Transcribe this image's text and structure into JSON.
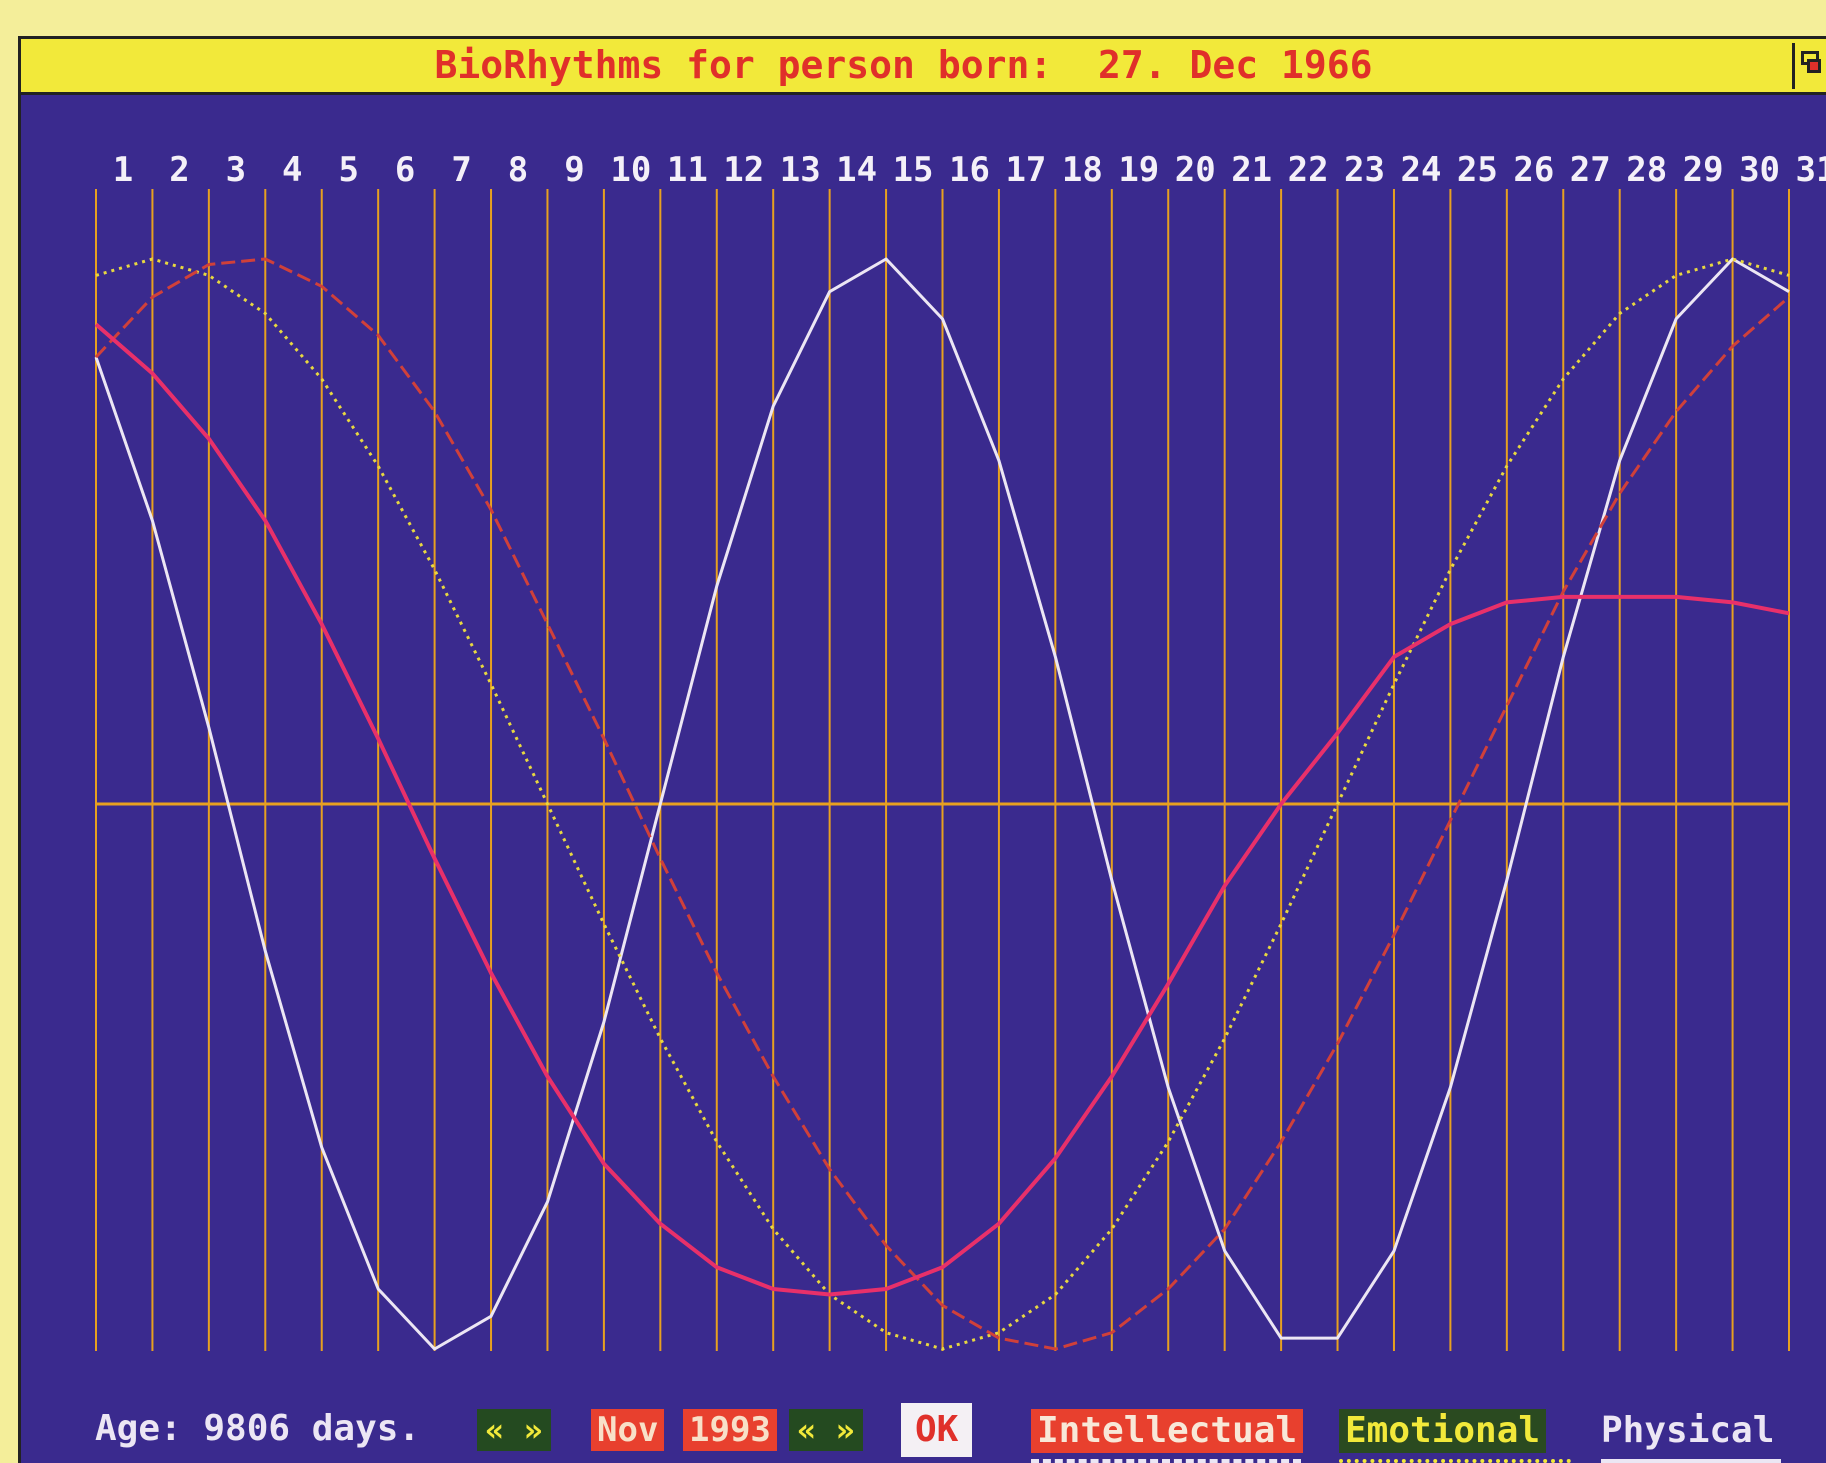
{
  "window": {
    "title": "BioRhythms for person born:  27. Dec 1966",
    "resize_icon": "resize-box-icon"
  },
  "controls": {
    "age_label": "Age: 9806 days.",
    "month_prev_next": "« »",
    "month": "Nov",
    "year": "1993",
    "year_prev_next": "« »",
    "ok_label": "OK"
  },
  "legend": {
    "intellectual": "Intellectual",
    "emotional": "Emotional",
    "physical": "Physical"
  },
  "colors": {
    "background": "#3a2a8e",
    "grid": "#e8a020",
    "title_bar": "#f2e93a",
    "title_text": "#e0302a",
    "physical": "#ece6f4",
    "emotional": "#e8d840",
    "intellectual": "#d0403a",
    "fourth_curve": "#e8306a"
  },
  "chart_data": {
    "type": "line",
    "x": [
      1,
      2,
      3,
      4,
      5,
      6,
      7,
      8,
      9,
      10,
      11,
      12,
      13,
      14,
      15,
      16,
      17,
      18,
      19,
      20,
      21,
      22,
      23,
      24,
      25,
      26,
      27,
      28,
      29,
      30,
      31
    ],
    "tick_labels": [
      "1",
      "2",
      "3",
      "4",
      "5",
      "6",
      "7",
      "8",
      "9",
      "10",
      "11",
      "12",
      "13",
      "14",
      "15",
      "16",
      "17",
      "18",
      "19",
      "20",
      "21",
      "22",
      "23",
      "24",
      "25",
      "26",
      "27",
      "28",
      "29",
      "30",
      "31"
    ],
    "ylim": [
      -1,
      1
    ],
    "grid": true,
    "series": [
      {
        "name": "Physical",
        "style": "solid",
        "values": [
          0.82,
          0.52,
          0.14,
          -0.27,
          -0.63,
          -0.89,
          -1.0,
          -0.94,
          -0.73,
          -0.4,
          0.0,
          0.4,
          0.73,
          0.94,
          1.0,
          0.89,
          0.63,
          0.27,
          -0.14,
          -0.52,
          -0.82,
          -0.98,
          -0.98,
          -0.82,
          -0.52,
          -0.14,
          0.27,
          0.63,
          0.89,
          1.0,
          0.94
        ]
      },
      {
        "name": "Emotional",
        "style": "dotted",
        "values": [
          0.97,
          1.0,
          0.97,
          0.9,
          0.78,
          0.62,
          0.43,
          0.22,
          0.0,
          -0.22,
          -0.43,
          -0.62,
          -0.78,
          -0.9,
          -0.97,
          -1.0,
          -0.97,
          -0.9,
          -0.78,
          -0.62,
          -0.43,
          -0.22,
          0.0,
          0.22,
          0.43,
          0.62,
          0.78,
          0.9,
          0.97,
          1.0,
          0.97
        ]
      },
      {
        "name": "Intellectual",
        "style": "dashed",
        "values": [
          0.82,
          0.93,
          0.99,
          1.0,
          0.95,
          0.86,
          0.72,
          0.54,
          0.33,
          0.12,
          -0.1,
          -0.31,
          -0.5,
          -0.67,
          -0.81,
          -0.92,
          -0.98,
          -1.0,
          -0.97,
          -0.89,
          -0.78,
          -0.62,
          -0.44,
          -0.24,
          -0.03,
          0.18,
          0.39,
          0.57,
          0.72,
          0.84,
          0.93
        ]
      },
      {
        "name": "",
        "style": "solid",
        "values": [
          0.88,
          0.79,
          0.67,
          0.52,
          0.33,
          0.12,
          -0.1,
          -0.31,
          -0.5,
          -0.66,
          -0.77,
          -0.85,
          -0.89,
          -0.9,
          -0.89,
          -0.85,
          -0.77,
          -0.65,
          -0.5,
          -0.33,
          -0.15,
          0.0,
          0.13,
          0.27,
          0.33,
          0.37,
          0.38,
          0.38,
          0.38,
          0.37,
          0.35
        ]
      }
    ]
  }
}
